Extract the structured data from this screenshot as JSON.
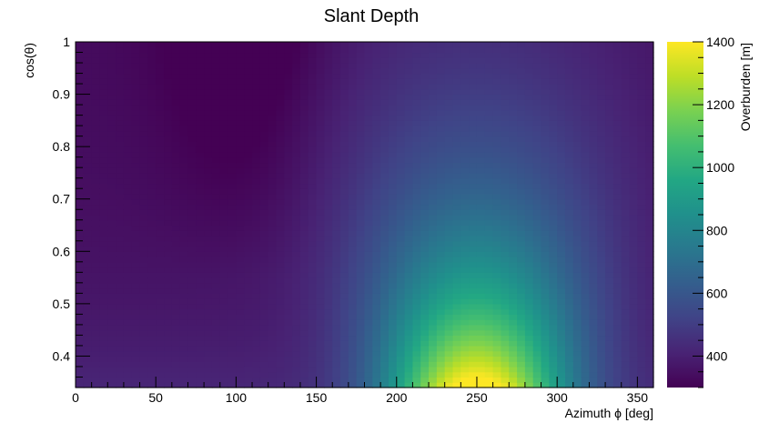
{
  "chart_data": {
    "type": "heatmap",
    "title": "Slant Depth",
    "xlabel": "Azimuth ϕ [deg]",
    "ylabel": "cos(θ)",
    "zlabel": "Overburden [m]",
    "xlim": [
      0,
      360
    ],
    "ylim": [
      0.34,
      1.0
    ],
    "zlim": [
      300,
      1400
    ],
    "colormap": "viridis",
    "x_ticks": [
      "0",
      "50",
      "100",
      "150",
      "200",
      "250",
      "300",
      "350"
    ],
    "y_ticks": [
      "0.4",
      "0.5",
      "0.6",
      "0.7",
      "0.8",
      "0.9",
      "1"
    ],
    "z_ticks": [
      "400",
      "600",
      "800",
      "1000",
      "1200",
      "1400"
    ],
    "x_bins": 72,
    "y_bins": 66,
    "features": [
      {
        "description": "broad ridge of high overburden",
        "phi_center": 250,
        "phi_width": 40,
        "peak_value": 1400,
        "at_cos_theta": 0.35
      },
      {
        "description": "minimum",
        "phi_center": 105,
        "value": 330,
        "at_cos_theta": 0.95
      },
      {
        "description": "background",
        "value": 420
      }
    ]
  }
}
